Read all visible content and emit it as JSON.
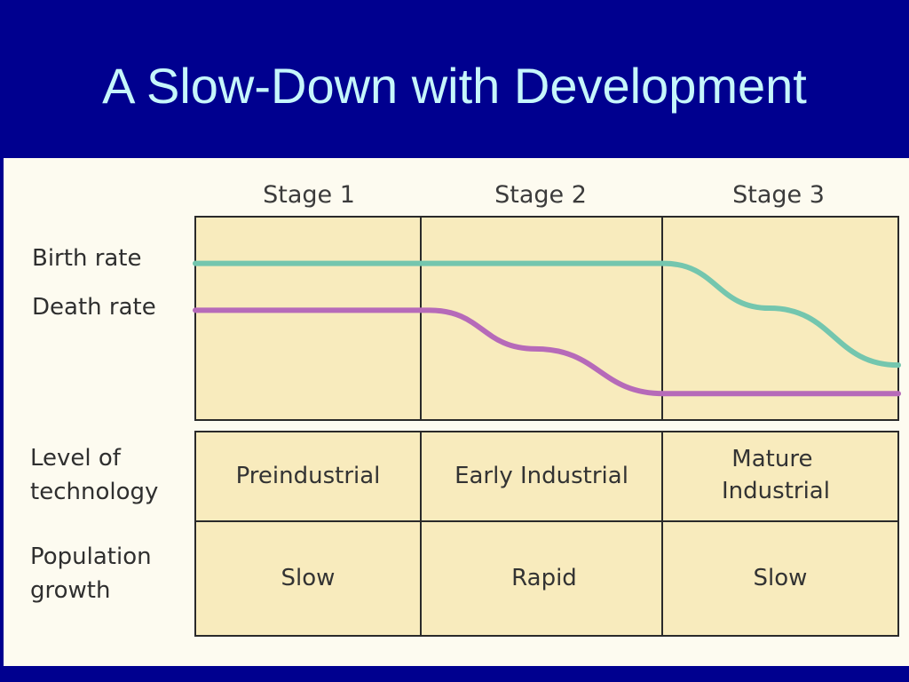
{
  "slide": {
    "title": "A Slow-Down with Development"
  },
  "colors": {
    "background": "#00008f",
    "title": "#c6f6fb",
    "panel": "#f8ebbd",
    "birth_rate_line": "#74c6ae",
    "death_rate_line": "#b66ab9"
  },
  "chart_data": {
    "type": "line",
    "title": "",
    "stages": [
      "Stage 1",
      "Stage 2",
      "Stage 3"
    ],
    "series": [
      {
        "name": "Birth rate",
        "points": [
          [
            0,
            0.77
          ],
          [
            1,
            0.77
          ],
          [
            2,
            0.77
          ],
          [
            2.45,
            0.55
          ],
          [
            3,
            0.27
          ]
        ]
      },
      {
        "name": "Death rate",
        "points": [
          [
            0,
            0.54
          ],
          [
            1,
            0.54
          ],
          [
            1.45,
            0.35
          ],
          [
            2,
            0.13
          ],
          [
            3,
            0.13
          ]
        ]
      }
    ],
    "ylim": [
      0,
      1
    ],
    "xlim": [
      0,
      3
    ],
    "grid": false,
    "table": {
      "rows": [
        {
          "label_lines": [
            "Level of",
            "technology"
          ],
          "cells": [
            [
              "Preindustrial"
            ],
            [
              "Early Industrial"
            ],
            [
              "Mature",
              "Industrial"
            ]
          ]
        },
        {
          "label_lines": [
            "Population",
            "growth"
          ],
          "cells": [
            [
              "Slow"
            ],
            [
              "Rapid"
            ],
            [
              "Slow"
            ]
          ]
        }
      ]
    }
  }
}
